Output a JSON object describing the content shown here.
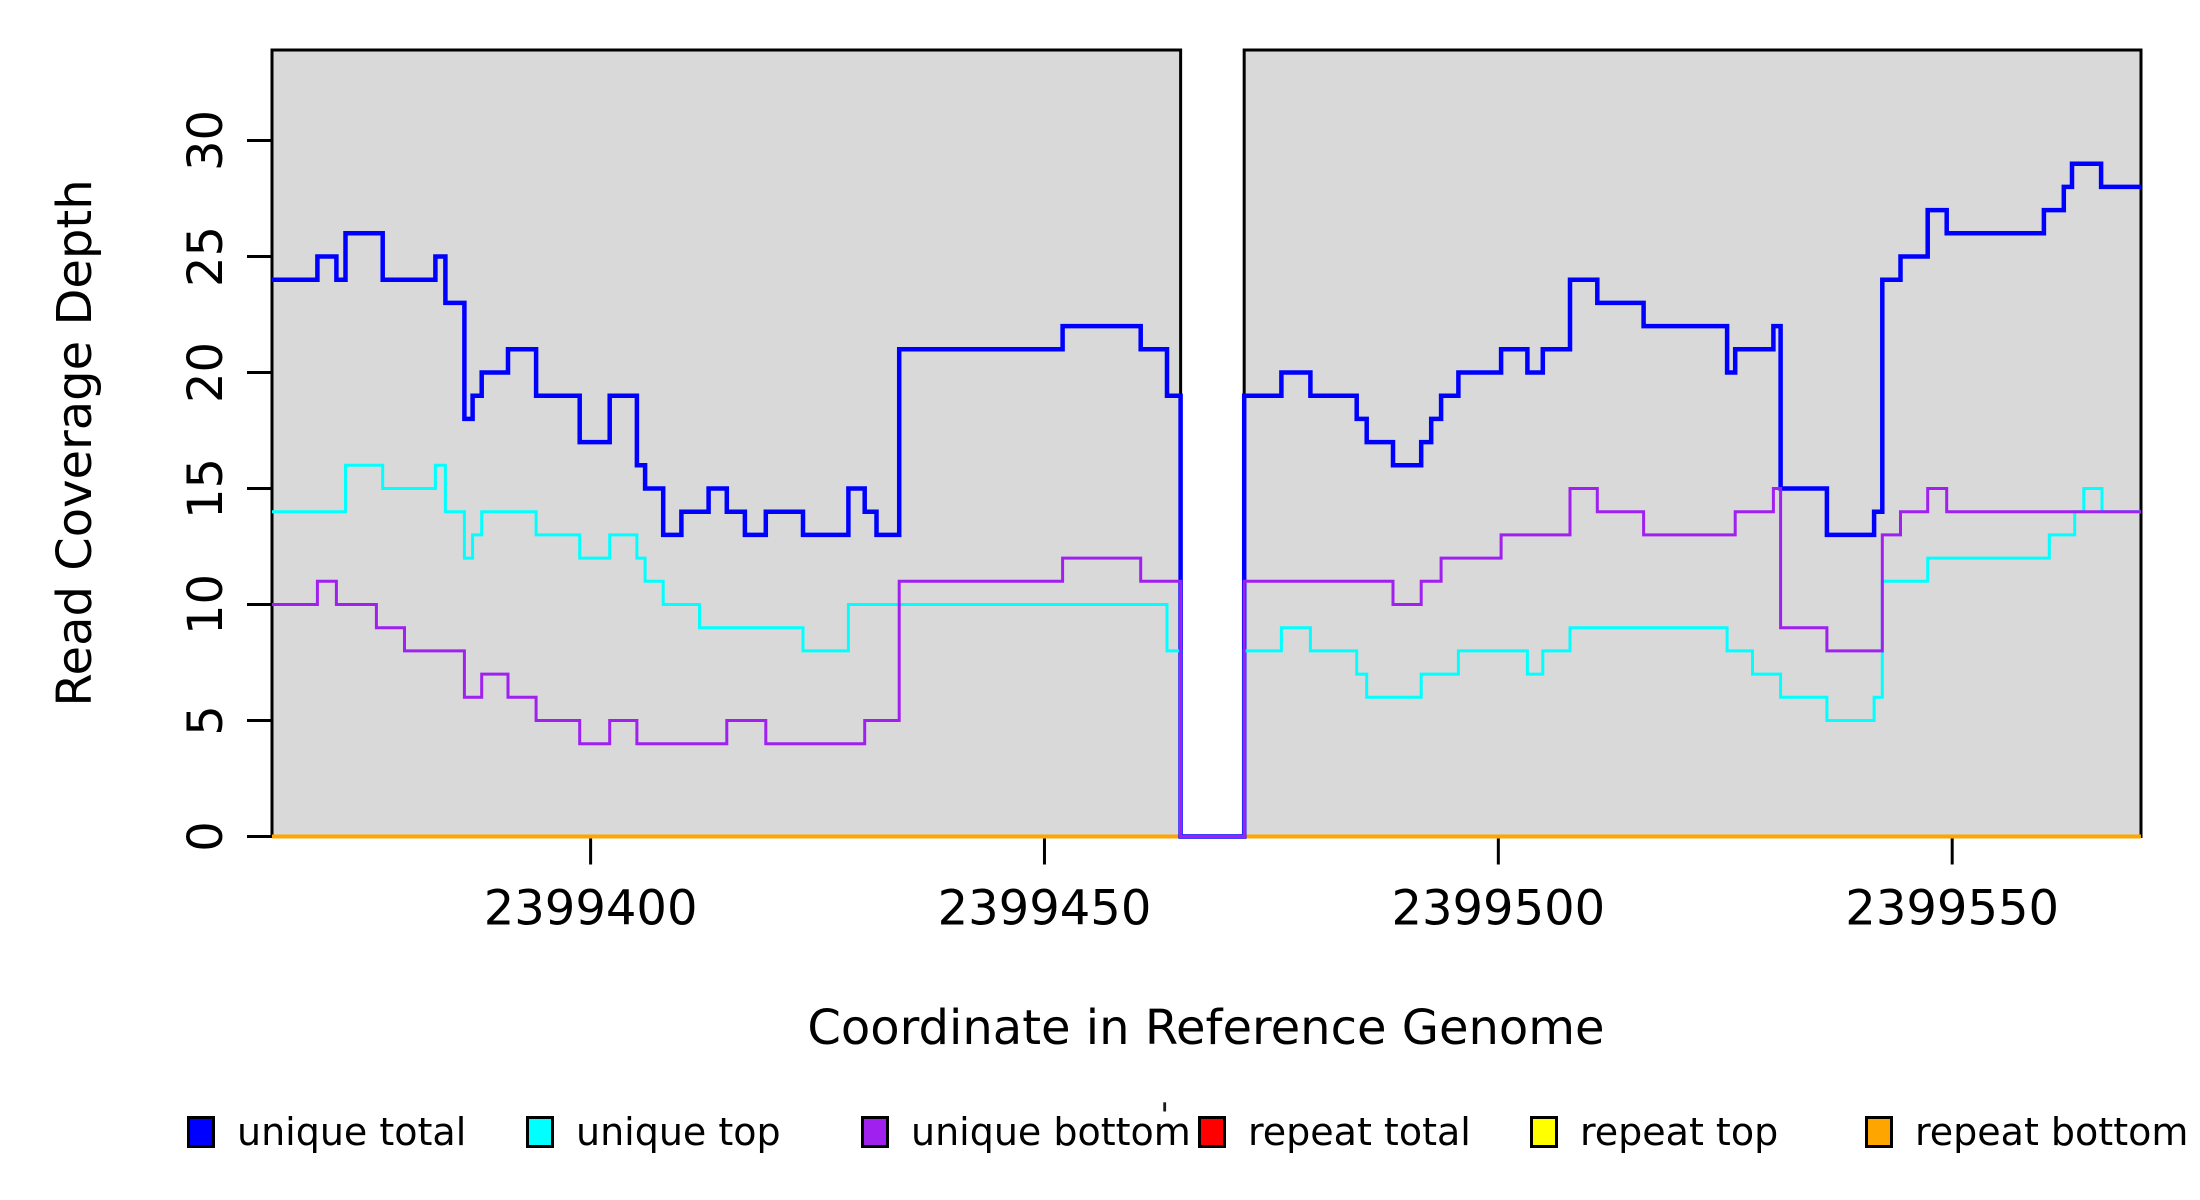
{
  "chart_data": {
    "type": "line",
    "subtype": "step",
    "title": "",
    "xlabel": "Coordinate in Reference Genome",
    "ylabel": "Read Coverage Depth",
    "xlim": [
      2399364.9,
      2399570.8
    ],
    "ylim": [
      0,
      33.9
    ],
    "grid": false,
    "legend_position": "bottom",
    "background_color": "#d9d9d9",
    "outer_background": "#ffffff",
    "gap_region": {
      "start": 2399465,
      "end": 2399472,
      "color": "#ffffff"
    },
    "x_ticks": [
      {
        "value": 2399400,
        "label": "2399400"
      },
      {
        "value": 2399450,
        "label": "2399450"
      },
      {
        "value": 2399500,
        "label": "2399500"
      },
      {
        "value": 2399550,
        "label": "2399550"
      }
    ],
    "y_ticks": [
      {
        "value": 0,
        "label": "0"
      },
      {
        "value": 5,
        "label": "5"
      },
      {
        "value": 10,
        "label": "10"
      },
      {
        "value": 15,
        "label": "15"
      },
      {
        "value": 20,
        "label": "20"
      },
      {
        "value": 25,
        "label": "25"
      },
      {
        "value": 30,
        "label": "30"
      }
    ],
    "x_end": 2399570.8,
    "series": [
      {
        "name": "unique total",
        "color": "#0000ff",
        "breakpoints": [
          [
            2399364.9,
            24
          ],
          [
            2399369.9,
            25
          ],
          [
            2399372,
            24
          ],
          [
            2399373,
            26
          ],
          [
            2399377.1,
            24
          ],
          [
            2399382.9,
            25
          ],
          [
            2399384,
            23
          ],
          [
            2399386.1,
            18
          ],
          [
            2399387,
            19
          ],
          [
            2399388,
            20
          ],
          [
            2399390.9,
            21
          ],
          [
            2399394,
            19
          ],
          [
            2399398.8,
            17
          ],
          [
            2399402.1,
            19
          ],
          [
            2399405.1,
            16
          ],
          [
            2399406,
            15
          ],
          [
            2399408,
            13
          ],
          [
            2399410,
            14
          ],
          [
            2399413,
            15
          ],
          [
            2399415,
            14
          ],
          [
            2399417,
            13
          ],
          [
            2399419.3,
            14
          ],
          [
            2399423.4,
            13
          ],
          [
            2399428.4,
            15
          ],
          [
            2399430.2,
            14
          ],
          [
            2399431.5,
            13
          ],
          [
            2399434,
            21
          ],
          [
            2399452,
            22
          ],
          [
            2399460.6,
            21
          ],
          [
            2399463.5,
            19
          ],
          [
            2399465,
            0
          ],
          [
            2399472,
            19
          ],
          [
            2399476.1,
            20
          ],
          [
            2399479.3,
            19
          ],
          [
            2399484.4,
            18
          ],
          [
            2399485.5,
            17
          ],
          [
            2399488.4,
            16
          ],
          [
            2399491.5,
            17
          ],
          [
            2399492.6,
            18
          ],
          [
            2399493.7,
            19
          ],
          [
            2399495.6,
            20
          ],
          [
            2399500.3,
            21
          ],
          [
            2399503.2,
            20
          ],
          [
            2399504.9,
            21
          ],
          [
            2399507.9,
            24
          ],
          [
            2399510.9,
            23
          ],
          [
            2399516,
            22
          ],
          [
            2399525.2,
            20
          ],
          [
            2399526.1,
            21
          ],
          [
            2399530.3,
            22
          ],
          [
            2399531.1,
            15
          ],
          [
            2399536.2,
            13
          ],
          [
            2399541.4,
            14
          ],
          [
            2399542.3,
            24
          ],
          [
            2399544.3,
            25
          ],
          [
            2399547.3,
            27
          ],
          [
            2399549.4,
            26
          ],
          [
            2399560.1,
            27
          ],
          [
            2399562.3,
            28
          ],
          [
            2399563.2,
            29
          ],
          [
            2399566.4,
            28
          ]
        ]
      },
      {
        "name": "unique top",
        "color": "#00ffff",
        "breakpoints": [
          [
            2399364.9,
            14
          ],
          [
            2399373,
            16
          ],
          [
            2399377.1,
            15
          ],
          [
            2399382.9,
            16
          ],
          [
            2399384,
            14
          ],
          [
            2399386.1,
            12
          ],
          [
            2399387,
            13
          ],
          [
            2399388,
            14
          ],
          [
            2399394,
            13
          ],
          [
            2399398.8,
            12
          ],
          [
            2399402.1,
            13
          ],
          [
            2399405.1,
            12
          ],
          [
            2399406,
            11
          ],
          [
            2399408,
            10
          ],
          [
            2399412,
            9
          ],
          [
            2399423.4,
            8
          ],
          [
            2399428.4,
            10
          ],
          [
            2399463.5,
            8
          ],
          [
            2399465,
            0
          ],
          [
            2399472,
            8
          ],
          [
            2399476.1,
            9
          ],
          [
            2399479.3,
            8
          ],
          [
            2399484.4,
            7
          ],
          [
            2399485.5,
            6
          ],
          [
            2399491.5,
            7
          ],
          [
            2399495.6,
            8
          ],
          [
            2399503.2,
            7
          ],
          [
            2399504.9,
            8
          ],
          [
            2399507.9,
            9
          ],
          [
            2399525.2,
            8
          ],
          [
            2399528,
            7
          ],
          [
            2399531.1,
            6
          ],
          [
            2399536.2,
            5
          ],
          [
            2399541.4,
            6
          ],
          [
            2399542.3,
            11
          ],
          [
            2399547.3,
            12
          ],
          [
            2399560.7,
            13
          ],
          [
            2399563.5,
            14
          ],
          [
            2399564.5,
            15
          ],
          [
            2399566.5,
            14
          ]
        ]
      },
      {
        "name": "unique bottom",
        "color": "#a020f0",
        "breakpoints": [
          [
            2399364.9,
            10
          ],
          [
            2399369.9,
            11
          ],
          [
            2399372,
            10
          ],
          [
            2399376.4,
            9
          ],
          [
            2399379.5,
            8
          ],
          [
            2399386.1,
            6
          ],
          [
            2399388,
            7
          ],
          [
            2399390.9,
            6
          ],
          [
            2399394,
            5
          ],
          [
            2399398.8,
            4
          ],
          [
            2399402.1,
            5
          ],
          [
            2399405.1,
            4
          ],
          [
            2399415,
            5
          ],
          [
            2399419.3,
            4
          ],
          [
            2399430.2,
            5
          ],
          [
            2399434,
            11
          ],
          [
            2399452,
            12
          ],
          [
            2399460.6,
            11
          ],
          [
            2399465,
            0
          ],
          [
            2399472,
            11
          ],
          [
            2399488.4,
            10
          ],
          [
            2399491.5,
            11
          ],
          [
            2399493.7,
            12
          ],
          [
            2399500.3,
            13
          ],
          [
            2399507.9,
            15
          ],
          [
            2399510.9,
            14
          ],
          [
            2399516,
            13
          ],
          [
            2399526.1,
            14
          ],
          [
            2399530.3,
            15
          ],
          [
            2399531.1,
            9
          ],
          [
            2399536.2,
            8
          ],
          [
            2399542.3,
            13
          ],
          [
            2399544.3,
            14
          ],
          [
            2399547.3,
            15
          ],
          [
            2399549.4,
            14
          ]
        ]
      },
      {
        "name": "repeat total",
        "color": "#ff0000",
        "breakpoints": [
          [
            2399364.9,
            0
          ]
        ]
      },
      {
        "name": "repeat top",
        "color": "#ffff00",
        "breakpoints": [
          [
            2399364.9,
            0
          ]
        ]
      },
      {
        "name": "repeat bottom",
        "color": "#ffa500",
        "breakpoints": [
          [
            2399364.9,
            0
          ]
        ]
      }
    ],
    "stray_mark": "'"
  }
}
